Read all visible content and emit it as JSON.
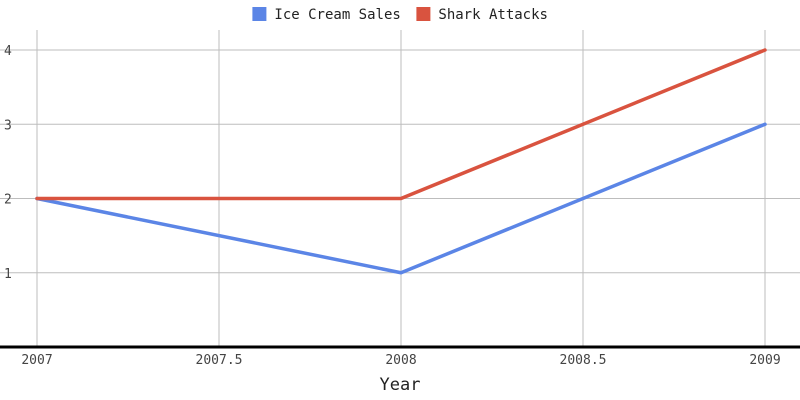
{
  "chart_data": {
    "type": "line",
    "title": "",
    "xlabel": "Year",
    "ylabel": "",
    "x": [
      2007,
      2008,
      2009
    ],
    "xlim": [
      2007,
      2009
    ],
    "ylim": [
      0,
      4
    ],
    "x_ticks": [
      "2007",
      "2007.5",
      "2008",
      "2008.5",
      "2009"
    ],
    "y_ticks": [
      "1",
      "2",
      "3",
      "4"
    ],
    "grid": true,
    "legend_position": "top-center",
    "series": [
      {
        "name": "Ice Cream Sales",
        "values": [
          2,
          1,
          3
        ],
        "color": "#5b85e6"
      },
      {
        "name": "Shark Attacks",
        "values": [
          2,
          2,
          4
        ],
        "color": "#d9533f"
      }
    ]
  }
}
